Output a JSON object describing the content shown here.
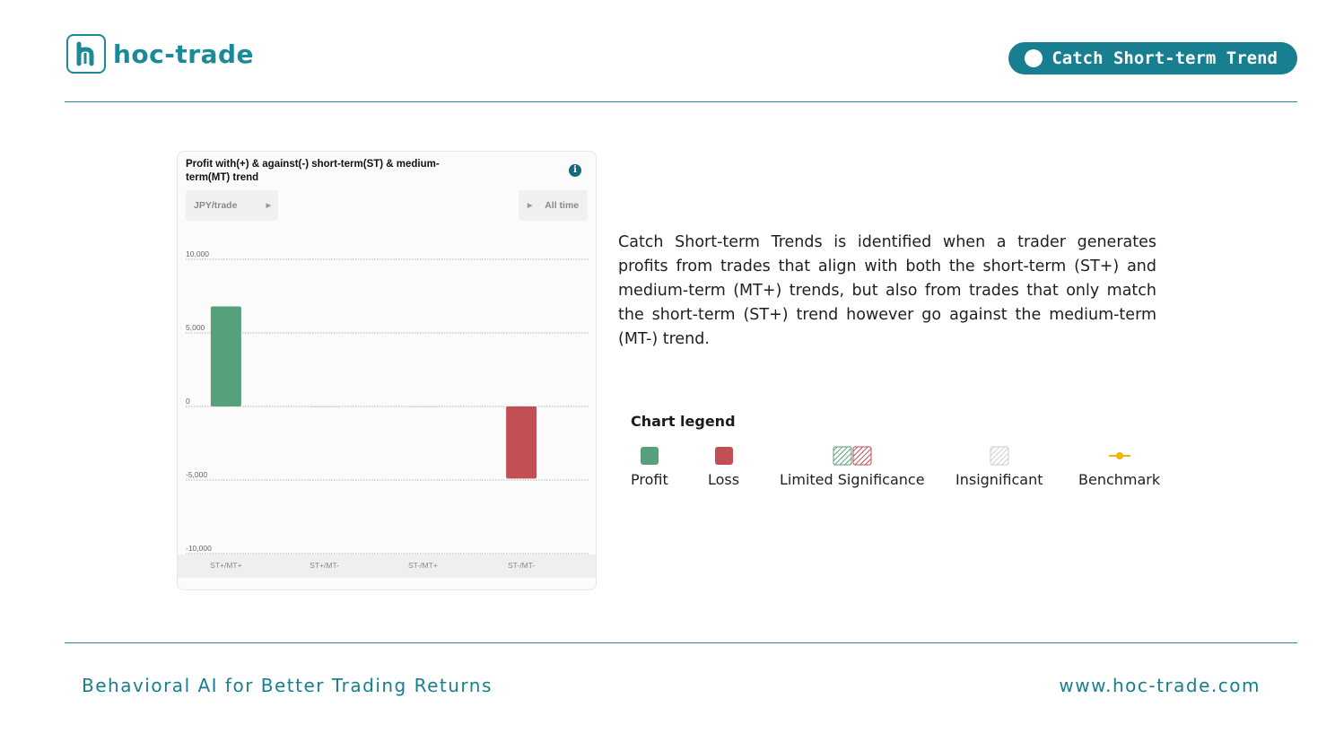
{
  "brand": {
    "name": "hoc-trade",
    "color": "#1a8a99"
  },
  "badge": {
    "label": "Catch Short-term Trend",
    "color": "#177f8f"
  },
  "card": {
    "title": "Profit with(+) & against(-) short-term(ST) & medium-term(MT) trend",
    "unit_selector": "JPY/trade",
    "period_selector": "All time",
    "info_icon": "info-icon"
  },
  "chart_data": {
    "type": "bar",
    "categories": [
      "ST+/MT+",
      "ST+/MT-",
      "ST-/MT+",
      "ST-/MT-"
    ],
    "values": [
      6800,
      0,
      0,
      -4900
    ],
    "bar_colors": [
      "#56a07b",
      "#56a07b",
      "#56a07b",
      "#c24f55"
    ],
    "ylim": [
      -10000,
      10000
    ],
    "yticks": [
      10000,
      5000,
      0,
      -5000,
      -10000
    ],
    "ytick_labels": [
      "10,000",
      "5,000",
      "0",
      "-5,000",
      "-10,000"
    ],
    "grid": true,
    "title": "Profit with(+) & against(-) short-term(ST) & medium-term(MT) trend",
    "xlabel": "",
    "ylabel": ""
  },
  "description": "Catch Short-term Trends is identified when a trader generates profits from trades that align with both the short-term (ST+) and medium-term (MT+) trends, but also from trades that only match the short-term (ST+) trend however go against the medium-term (MT-) trend.",
  "legend": {
    "title": "Chart legend",
    "items": [
      {
        "label": "Profit",
        "icon": "profit-swatch",
        "color": "#56a07b"
      },
      {
        "label": "Loss",
        "icon": "loss-swatch",
        "color": "#c24f55"
      },
      {
        "label": "Limited Significance",
        "icon": "hatched-swatch"
      },
      {
        "label": "Insignificant",
        "icon": "gray-hatched-swatch"
      },
      {
        "label": "Benchmark",
        "icon": "benchmark-line",
        "color": "#f2b705"
      }
    ]
  },
  "footer": {
    "tagline": "Behavioral AI for Better Trading Returns",
    "website": "www.hoc-trade.com"
  }
}
